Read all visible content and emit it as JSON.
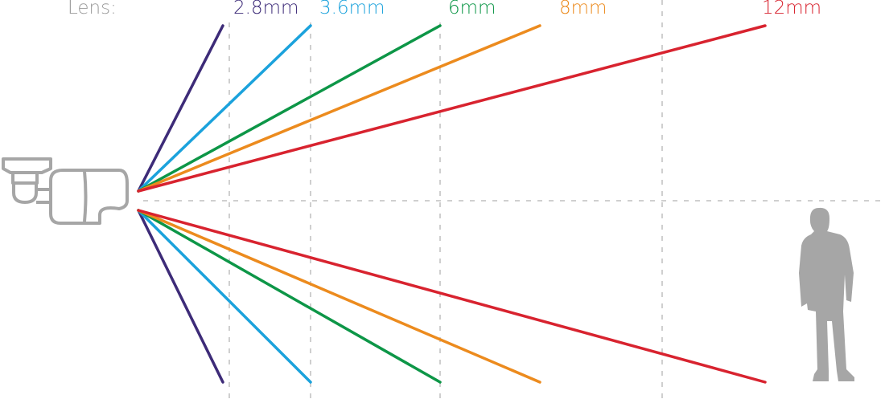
{
  "title_label": "Lens:",
  "lenses": [
    {
      "label": "2.8mm",
      "color": "#3d2b78"
    },
    {
      "label": "3.6mm",
      "color": "#1ba2dc"
    },
    {
      "label": "6mm",
      "color": "#0d9647"
    },
    {
      "label": "8mm",
      "color": "#ec8b1e"
    },
    {
      "label": "12mm",
      "color": "#d8232f"
    }
  ],
  "icons": {
    "camera": "bullet-camera-icon",
    "person": "person-silhouette-icon"
  },
  "colors": {
    "grid": "#cfcfcf",
    "icon": "#a6a6a6",
    "label_gray": "#9a9a9a"
  }
}
